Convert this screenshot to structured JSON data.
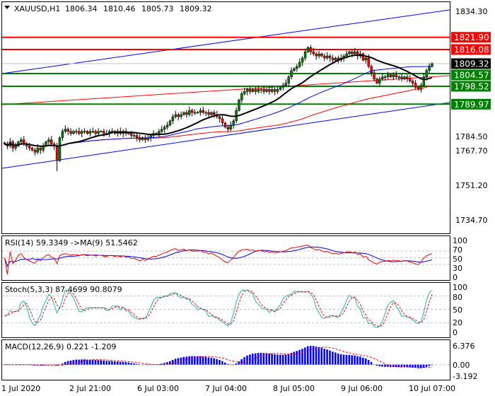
{
  "header": {
    "symbol": "XAUUSD,H1",
    "open": "1806.34",
    "high": "1810.46",
    "low": "1805.73",
    "close": "1809.32"
  },
  "price_axis": {
    "ticks": [
      "1834.30",
      "1784.50",
      "1767.70",
      "1751.20",
      "1734.70"
    ],
    "top": 1834.3,
    "bottom": 1734.7
  },
  "levels": [
    {
      "value": 1821.9,
      "label": "1821.90",
      "color": "#ff0000"
    },
    {
      "value": 1816.08,
      "label": "1816.08",
      "color": "#ff0000"
    },
    {
      "value": 1804.57,
      "label": "1804.57",
      "color": "#008000"
    },
    {
      "value": 1798.52,
      "label": "1798.52",
      "color": "#008000"
    },
    {
      "value": 1789.97,
      "label": "1789.97",
      "color": "#008000"
    }
  ],
  "current_price": {
    "value": 1809.32,
    "label": "1809.32"
  },
  "colors": {
    "bull": "#008000",
    "bear": "#ff0000",
    "ma_fast": "#000000",
    "ma_mid": "#0000ff",
    "ma_slow": "#ff0000",
    "channel": "#0000ff",
    "trend": "#ff0000",
    "signal": "#ff0000",
    "stoch_main": "#20b2aa"
  },
  "closes": [
    1771,
    1770,
    1772,
    1769,
    1770,
    1772,
    1773,
    1771,
    1770,
    1769,
    1768,
    1767,
    1769,
    1768,
    1770,
    1772,
    1773,
    1771,
    1770,
    1763,
    1774,
    1777,
    1778,
    1777,
    1776,
    1777,
    1777,
    1776,
    1777,
    1777,
    1776,
    1777,
    1777,
    1776,
    1777,
    1777,
    1776,
    1776,
    1777,
    1777,
    1776,
    1777,
    1776,
    1777,
    1776,
    1776,
    1775,
    1775,
    1774,
    1773,
    1774,
    1773,
    1774,
    1775,
    1776,
    1776,
    1777,
    1778,
    1779,
    1780,
    1782,
    1784,
    1785,
    1784,
    1785,
    1786,
    1785,
    1787,
    1786,
    1786,
    1786,
    1787,
    1786,
    1786,
    1785,
    1786,
    1785,
    1784,
    1783,
    1781,
    1779,
    1778,
    1780,
    1782,
    1787,
    1792,
    1795,
    1796,
    1797,
    1796,
    1797,
    1796,
    1797,
    1797,
    1796,
    1797,
    1796,
    1797,
    1796,
    1797,
    1798,
    1799,
    1800,
    1803,
    1806,
    1807,
    1808,
    1810,
    1812,
    1815,
    1817,
    1815,
    1814,
    1813,
    1814,
    1813,
    1812,
    1813,
    1812,
    1811,
    1812,
    1811,
    1812,
    1813,
    1814,
    1815,
    1814,
    1815,
    1813,
    1814,
    1811,
    1812,
    1808,
    1805,
    1802,
    1800,
    1802,
    1803,
    1803,
    1804,
    1803,
    1804,
    1803,
    1803,
    1802,
    1803,
    1802,
    1801,
    1800,
    1798,
    1797,
    1799,
    1803,
    1806,
    1808,
    1809.32
  ],
  "rsi": {
    "title": "RSI(14) 59.3349 ->MA(9) 51.5462",
    "ticks": [
      "100",
      "70",
      "50",
      "30",
      "0"
    ]
  },
  "stoch": {
    "title": "Stoch(5,3,3) 87.4699 90.8079",
    "ticks": [
      "100",
      "80",
      "50",
      "20",
      "0"
    ]
  },
  "macd": {
    "title": "MACD(12,26,9) 0.221 -1.209",
    "ticks": [
      "6.376",
      "0.00",
      "-3.192"
    ],
    "max": 6.376,
    "min": -3.192
  },
  "time_axis": [
    "1 Jul 2020",
    "2 Jul 21:00",
    "6 Jul 03:00",
    "7 Jul 04:00",
    "8 Jul 05:00",
    "9 Jul 06:00",
    "10 Jul 07:00"
  ]
}
